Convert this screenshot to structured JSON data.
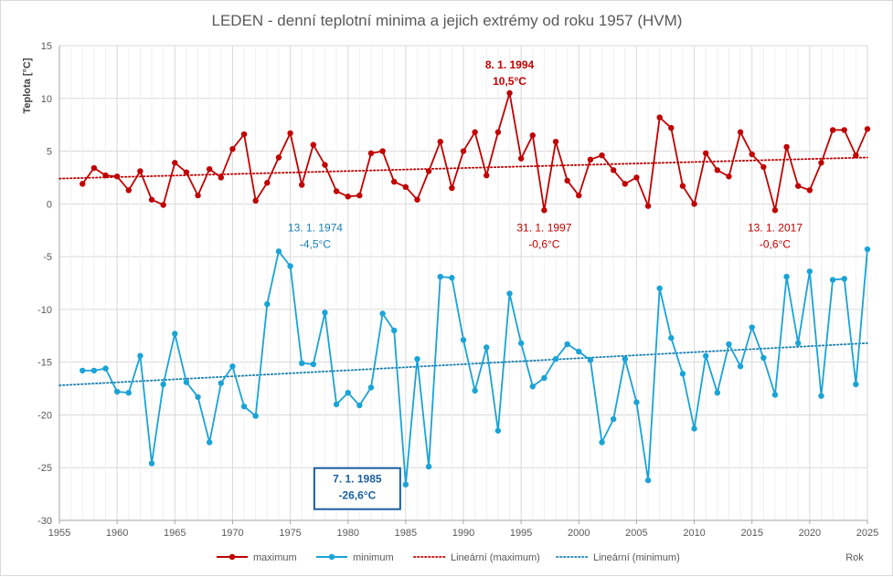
{
  "chart_data": {
    "type": "line",
    "title": "LEDEN - denní teplotní minima a jejich extrémy od roku 1957 (HVM)",
    "ylabel": "Teplota [°C]",
    "xlabel": "Rok",
    "xlim": [
      1955,
      2025
    ],
    "ylim": [
      -30,
      15
    ],
    "x_ticks": [
      "1955",
      "1960",
      "1965",
      "1970",
      "1975",
      "1980",
      "1985",
      "1990",
      "1995",
      "2000",
      "2005",
      "2010",
      "2015",
      "2020",
      "2025"
    ],
    "y_ticks": [
      "15",
      "10",
      "5",
      "0",
      "-5",
      "-10",
      "-15",
      "-20",
      "-25",
      "-30"
    ],
    "grid": true,
    "legend_position": "bottom",
    "x": [
      1957,
      1958,
      1959,
      1960,
      1961,
      1962,
      1963,
      1964,
      1965,
      1966,
      1967,
      1968,
      1969,
      1970,
      1971,
      1972,
      1973,
      1974,
      1975,
      1976,
      1977,
      1978,
      1979,
      1980,
      1981,
      1982,
      1983,
      1984,
      1985,
      1986,
      1987,
      1988,
      1989,
      1990,
      1991,
      1992,
      1993,
      1994,
      1995,
      1996,
      1997,
      1998,
      1999,
      2000,
      2001,
      2002,
      2003,
      2004,
      2005,
      2006,
      2007,
      2008,
      2009,
      2010,
      2011,
      2012,
      2013,
      2014,
      2015,
      2016,
      2017,
      2018,
      2019,
      2020,
      2021,
      2022,
      2023,
      2024,
      2025
    ],
    "series": [
      {
        "name": "maximum",
        "color": "#c00000",
        "values": [
          1.9,
          3.4,
          2.7,
          2.6,
          1.3,
          3.1,
          0.4,
          -0.1,
          3.9,
          3.0,
          0.8,
          3.3,
          2.5,
          5.2,
          6.6,
          0.3,
          2.0,
          4.4,
          6.7,
          1.8,
          5.6,
          3.7,
          1.2,
          0.7,
          0.8,
          4.8,
          5.0,
          2.1,
          1.6,
          0.4,
          3.1,
          5.9,
          1.5,
          5.0,
          6.8,
          2.7,
          6.8,
          10.5,
          4.3,
          6.5,
          -0.6,
          5.9,
          2.2,
          0.8,
          4.2,
          4.6,
          3.2,
          1.9,
          2.5,
          -0.2,
          8.2,
          7.2,
          1.7,
          0.0,
          4.8,
          3.2,
          2.6,
          6.8,
          4.7,
          3.5,
          -0.6,
          5.4,
          1.7,
          1.3,
          3.9,
          7.0,
          7.0,
          4.6,
          7.1
        ]
      },
      {
        "name": "minimum",
        "color": "#1aa3d6",
        "values": [
          -15.8,
          -15.8,
          -15.6,
          -17.8,
          -17.9,
          -14.4,
          -24.6,
          -17.1,
          -12.3,
          -16.9,
          -18.3,
          -22.6,
          -17.0,
          -15.4,
          -19.2,
          -20.1,
          -9.5,
          -4.5,
          -5.9,
          -15.1,
          -15.2,
          -10.3,
          -19.0,
          -17.9,
          -19.1,
          -17.4,
          -10.4,
          -12.0,
          -26.6,
          -14.7,
          -24.9,
          -6.9,
          -7.0,
          -12.9,
          -17.7,
          -13.6,
          -21.5,
          -8.5,
          -13.2,
          -17.3,
          -16.5,
          -14.7,
          -13.3,
          -14.0,
          -14.8,
          -22.6,
          -20.4,
          -14.7,
          -18.8,
          -26.2,
          -8.0,
          -12.7,
          -16.1,
          -21.3,
          -14.4,
          -17.9,
          -13.3,
          -15.4,
          -11.7,
          -14.6,
          -18.1,
          -6.9,
          -13.2,
          -6.4,
          -18.2,
          -7.2,
          -7.1,
          -17.1,
          -4.3
        ]
      }
    ],
    "trendlines": [
      {
        "name": "Lineární (maximum)",
        "color": "#c00000",
        "y_at_1955": 2.4,
        "y_at_2025": 4.4
      },
      {
        "name": "Lineární (minimum)",
        "color": "#1a7fb0",
        "y_at_1955": -17.2,
        "y_at_2025": -13.2
      }
    ],
    "annotations": [
      {
        "date": "8. 1. 1994",
        "value": "10,5°C",
        "x": 1994,
        "y": 10.5,
        "color": "#c00000",
        "bold": true,
        "boxed": false,
        "placement": "above"
      },
      {
        "date": "31. 1. 1997",
        "value": "-0,6°C",
        "x": 1997,
        "y": -0.6,
        "color": "#c00000",
        "bold": false,
        "boxed": false,
        "placement": "below"
      },
      {
        "date": "13. 1. 2017",
        "value": "-0,6°C",
        "x": 2017,
        "y": -0.6,
        "color": "#c00000",
        "bold": false,
        "boxed": false,
        "placement": "below"
      },
      {
        "date": "13. 1. 1974",
        "value": "-4,5°C",
        "x": 1974,
        "y": -4.5,
        "color": "#1a7fb0",
        "bold": false,
        "boxed": false,
        "placement": "above-right"
      },
      {
        "date": "7. 1. 1985",
        "value": "-26,6°C",
        "x": 1985,
        "y": -26.6,
        "color": "#1a5f9e",
        "bold": true,
        "boxed": true,
        "placement": "left"
      }
    ],
    "legend": [
      {
        "label": "maximum",
        "color": "#c00000",
        "style": "line-marker"
      },
      {
        "label": "minimum",
        "color": "#1aa3d6",
        "style": "line-marker"
      },
      {
        "label": "Lineární (maximum)",
        "color": "#c00000",
        "style": "dotted"
      },
      {
        "label": "Lineární (minimum)",
        "color": "#1a7fb0",
        "style": "dotted"
      }
    ]
  }
}
